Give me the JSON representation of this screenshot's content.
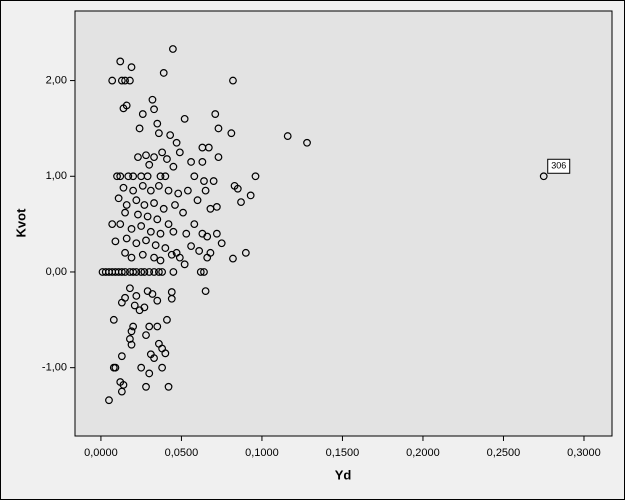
{
  "chart_data": {
    "type": "scatter",
    "x_label": "Yd",
    "y_label": "Kvot",
    "xlim": [
      -0.0161,
      0.3174
    ],
    "ylim": [
      -1.714,
      2.727
    ],
    "xticks": [
      {
        "value": 0,
        "label": "0,0000"
      },
      {
        "value": 0.05,
        "label": "0,0500"
      },
      {
        "value": 0.1,
        "label": "0,1000"
      },
      {
        "value": 0.15,
        "label": "0,1500"
      },
      {
        "value": 0.2,
        "label": "0,2000"
      },
      {
        "value": 0.25,
        "label": "0,2500"
      },
      {
        "value": 0.3,
        "label": "0,3000"
      }
    ],
    "yticks": [
      {
        "value": -1,
        "label": "-1,00"
      },
      {
        "value": 0,
        "label": "0,00"
      },
      {
        "value": 1,
        "label": "1,00"
      },
      {
        "value": 2,
        "label": "2,00"
      }
    ],
    "grid": false,
    "color": "#000000",
    "x": [
      0.0447,
      0.012,
      0.007,
      0.013,
      0.015,
      0.018,
      0.016,
      0.019,
      0.039,
      0.082,
      0.014,
      0.032,
      0.033,
      0.024,
      0.035,
      0.026,
      0.052,
      0.071,
      0.073,
      0.081,
      0.116,
      0.128,
      0.036,
      0.043,
      0.047,
      0.063,
      0.067,
      0.038,
      0.028,
      0.023,
      0.033,
      0.041,
      0.073,
      0.049,
      0.056,
      0.063,
      0.03,
      0.045,
      0.096,
      0.275,
      0.01,
      0.012,
      0.017,
      0.02,
      0.025,
      0.029,
      0.037,
      0.04,
      0.058,
      0.085,
      0.064,
      0.07,
      0.083,
      0.093,
      0.087,
      0.072,
      0.068,
      0.06,
      0.065,
      0.014,
      0.02,
      0.026,
      0.031,
      0.036,
      0.042,
      0.048,
      0.054,
      0.011,
      0.016,
      0.022,
      0.027,
      0.033,
      0.039,
      0.046,
      0.051,
      0.015,
      0.023,
      0.029,
      0.035,
      0.042,
      0.058,
      0.007,
      0.012,
      0.019,
      0.025,
      0.031,
      0.037,
      0.045,
      0.053,
      0.066,
      0.063,
      0.072,
      0.075,
      0.009,
      0.016,
      0.022,
      0.028,
      0.034,
      0.04,
      0.056,
      0.061,
      0.068,
      0.082,
      0.09,
      0.047,
      0.015,
      0.019,
      0.026,
      0.033,
      0.037,
      0.044,
      0.049,
      0.052,
      0.066,
      0.001,
      0.003,
      0.005,
      0.007,
      0.009,
      0.011,
      0.013,
      0.015,
      0.018,
      0.02,
      0.022,
      0.025,
      0.027,
      0.03,
      0.033,
      0.036,
      0.038,
      0.045,
      0.062,
      0.064,
      0.018,
      0.015,
      0.022,
      0.013,
      0.024,
      0.029,
      0.032,
      0.035,
      0.044,
      0.044,
      0.065,
      0.021,
      0.027,
      0.02,
      0.019,
      0.018,
      0.008,
      0.03,
      0.035,
      0.041,
      0.019,
      0.028,
      0.036,
      0.038,
      0.04,
      0.033,
      0.031,
      0.013,
      0.008,
      0.009,
      0.025,
      0.038,
      0.03,
      0.012,
      0.014,
      0.013,
      0.028,
      0.042,
      0.005
    ],
    "values": [
      2.33,
      2.2,
      2.0,
      2.0,
      2.0,
      2.0,
      1.74,
      2.14,
      2.08,
      2.0,
      1.71,
      1.8,
      1.7,
      1.5,
      1.55,
      1.65,
      1.6,
      1.65,
      1.5,
      1.45,
      1.42,
      1.35,
      1.45,
      1.43,
      1.35,
      1.3,
      1.3,
      1.25,
      1.22,
      1.2,
      1.2,
      1.18,
      1.2,
      1.25,
      1.15,
      1.15,
      1.12,
      1.1,
      1.0,
      1.0,
      1.0,
      1.0,
      1.0,
      1.0,
      1.0,
      1.0,
      1.0,
      1.0,
      1.0,
      0.87,
      0.95,
      0.95,
      0.9,
      0.8,
      0.73,
      0.68,
      0.66,
      0.75,
      0.85,
      0.88,
      0.85,
      0.9,
      0.85,
      0.9,
      0.85,
      0.82,
      0.85,
      0.77,
      0.7,
      0.75,
      0.7,
      0.72,
      0.66,
      0.7,
      0.62,
      0.62,
      0.6,
      0.58,
      0.55,
      0.5,
      0.5,
      0.5,
      0.5,
      0.45,
      0.48,
      0.42,
      0.4,
      0.42,
      0.4,
      0.37,
      0.4,
      0.4,
      0.3,
      0.32,
      0.35,
      0.3,
      0.33,
      0.28,
      0.25,
      0.27,
      0.22,
      0.2,
      0.14,
      0.2,
      0.2,
      0.2,
      0.15,
      0.18,
      0.15,
      0.12,
      0.18,
      0.15,
      0.08,
      0.15,
      0,
      0,
      0,
      0,
      0,
      0,
      0,
      0,
      0,
      0,
      0,
      0,
      0,
      0,
      0,
      0,
      0,
      0,
      0,
      0,
      -0.17,
      -0.27,
      -0.25,
      -0.32,
      -0.4,
      -0.2,
      -0.23,
      -0.3,
      -0.21,
      -0.28,
      -0.2,
      -0.35,
      -0.37,
      -0.57,
      -0.62,
      -0.7,
      -0.5,
      -0.57,
      -0.57,
      -0.5,
      -0.76,
      -0.66,
      -0.75,
      -0.8,
      -0.85,
      -0.9,
      -0.86,
      -0.88,
      -1.0,
      -1.0,
      -1.0,
      -1.0,
      -1.06,
      -1.15,
      -1.18,
      -1.25,
      -1.2,
      -1.2,
      -1.34
    ],
    "annotations": [
      {
        "text": "306",
        "x": 0.275,
        "y": 1.0
      }
    ]
  }
}
